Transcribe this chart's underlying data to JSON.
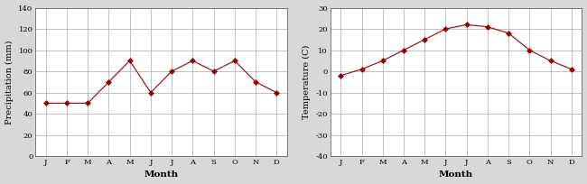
{
  "months": [
    "J",
    "F",
    "M",
    "A",
    "M",
    "J",
    "J",
    "A",
    "S",
    "O",
    "N",
    "D"
  ],
  "precip_values": [
    50,
    50,
    50,
    70,
    90,
    60,
    80,
    90,
    80,
    90,
    70,
    60
  ],
  "temp_values": [
    -2,
    1,
    5,
    10,
    15,
    20,
    22,
    21,
    18,
    10,
    5,
    1
  ],
  "precip_ylim": [
    0,
    140
  ],
  "precip_yticks": [
    0,
    20,
    40,
    60,
    80,
    100,
    120,
    140
  ],
  "temp_ylim": [
    -40,
    30
  ],
  "temp_yticks": [
    -40,
    -30,
    -20,
    -10,
    0,
    10,
    20,
    30
  ],
  "line_color": "#990000",
  "marker": "D",
  "markersize": 3,
  "linewidth": 0.8,
  "precip_ylabel": "Precipitation (mm)",
  "temp_ylabel": "Temperature (C)",
  "xlabel": "Month",
  "plot_bg_color": "#ffffff",
  "fig_bg_color": "#d8d8d8",
  "grid_color": "#aaaaaa",
  "tick_fontsize": 6,
  "ylabel_fontsize": 7,
  "xlabel_fontsize": 7.5,
  "spine_color": "#666666"
}
